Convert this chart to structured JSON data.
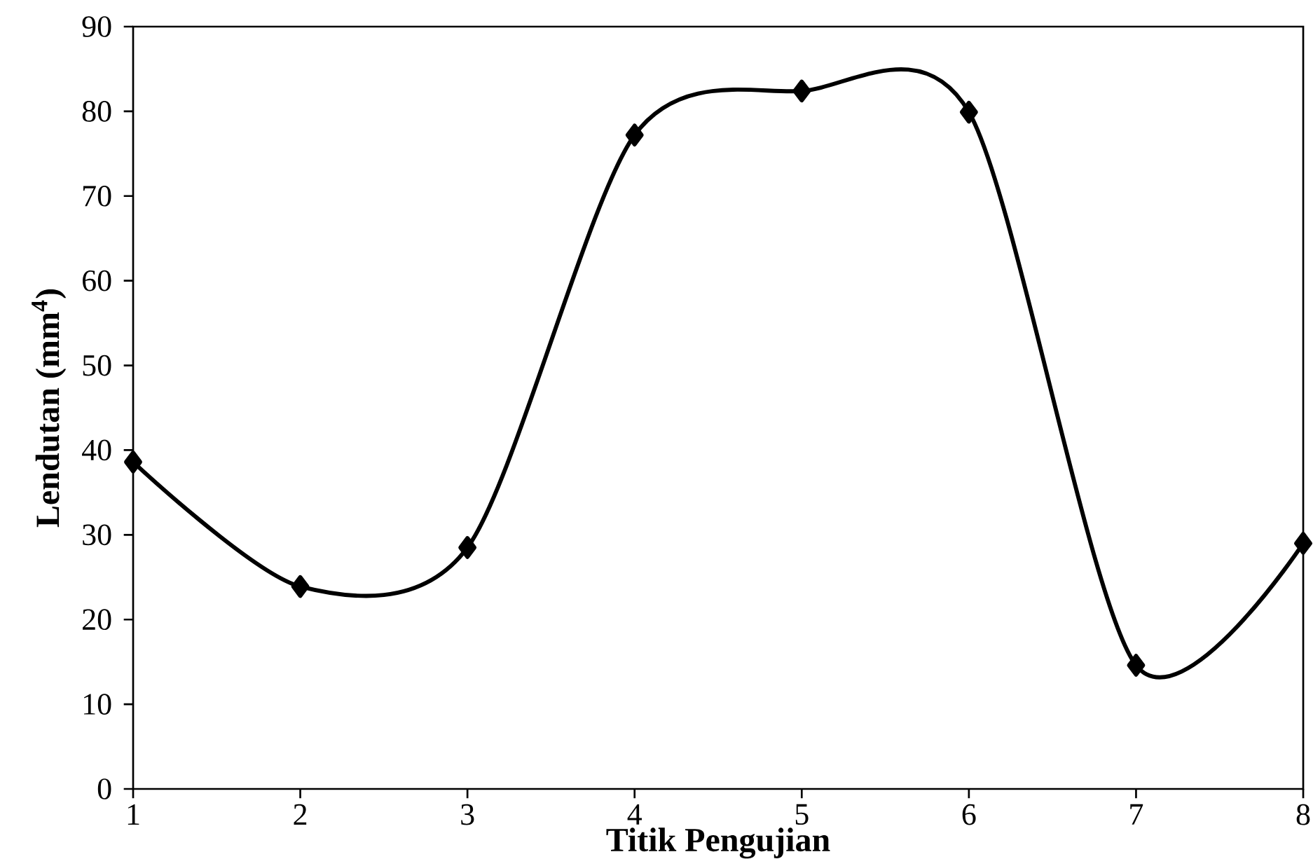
{
  "chart_data": {
    "type": "line",
    "xlabel": "Titik Pengujian",
    "ylabel": "Lendutan (mm$^{4}$)",
    "x": [
      1,
      2,
      3,
      4,
      5,
      6,
      7,
      8
    ],
    "series": [
      {
        "color": "#000000",
        "values": [
          38.6,
          23.9,
          28.5,
          77.2,
          82.4,
          79.9,
          14.6,
          29.0
        ]
      }
    ],
    "xlim": [
      1,
      8
    ],
    "xticks": [
      1,
      2,
      3,
      4,
      5,
      6,
      7,
      8
    ],
    "ylim": [
      0,
      90
    ],
    "yticks": [
      0,
      10,
      20,
      30,
      40,
      50,
      60,
      70,
      80,
      90
    ],
    "grid": false,
    "marker": "diamond",
    "line_style": "solid"
  }
}
